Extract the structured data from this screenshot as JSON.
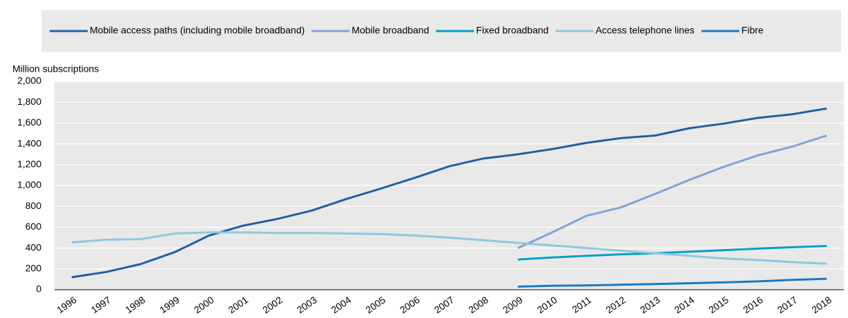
{
  "chart_data": {
    "type": "line",
    "y_label": "Million subscriptions",
    "categories": [
      "1996",
      "1997",
      "1998",
      "1999",
      "2000",
      "2001",
      "2002",
      "2003",
      "2004",
      "2005",
      "2006",
      "2007",
      "2008",
      "2009",
      "2010",
      "2011",
      "2012",
      "2013",
      "2014",
      "2015",
      "2016",
      "2017",
      "2018"
    ],
    "series": [
      {
        "name": "Mobile access paths (including mobile broadband)",
        "color": "#1f5fa6",
        "values": [
          120,
          170,
          245,
          360,
          520,
          615,
          680,
          760,
          870,
          970,
          1075,
          1185,
          1260,
          1300,
          1350,
          1410,
          1455,
          1480,
          1550,
          1595,
          1650,
          1685,
          1740
        ]
      },
      {
        "name": "Mobile broadband",
        "color": "#7fa3d6",
        "values": [
          null,
          null,
          null,
          null,
          null,
          null,
          null,
          null,
          null,
          null,
          null,
          null,
          null,
          400,
          550,
          710,
          790,
          920,
          1055,
          1180,
          1290,
          1375,
          1480
        ]
      },
      {
        "name": "Fixed broadband",
        "color": "#00a0c6",
        "values": [
          null,
          null,
          null,
          null,
          null,
          null,
          null,
          null,
          null,
          null,
          null,
          null,
          null,
          290,
          310,
          325,
          340,
          350,
          365,
          380,
          395,
          408,
          420
        ]
      },
      {
        "name": "Access telephone lines",
        "color": "#8cc8e0",
        "values": [
          455,
          480,
          485,
          540,
          550,
          550,
          545,
          545,
          540,
          535,
          520,
          500,
          475,
          450,
          425,
          400,
          375,
          350,
          325,
          300,
          285,
          265,
          250
        ]
      },
      {
        "name": "Fibre",
        "color": "#1a78c2",
        "values": [
          null,
          null,
          null,
          null,
          null,
          null,
          null,
          null,
          null,
          null,
          null,
          null,
          null,
          30,
          38,
          42,
          48,
          55,
          62,
          70,
          80,
          95,
          105
        ]
      }
    ],
    "ylim": [
      0,
      2000
    ],
    "yticks": [
      0,
      200,
      400,
      600,
      800,
      {
        "value": 1000,
        "label": "1,000"
      },
      {
        "value": 1200,
        "label": "1,200"
      },
      {
        "value": 1400,
        "label": "1,400"
      },
      {
        "value": 1600,
        "label": "1,600"
      },
      {
        "value": 1800,
        "label": "1,800"
      },
      {
        "value": 2000,
        "label": "2,000"
      }
    ],
    "grid": true,
    "legend": "top"
  }
}
